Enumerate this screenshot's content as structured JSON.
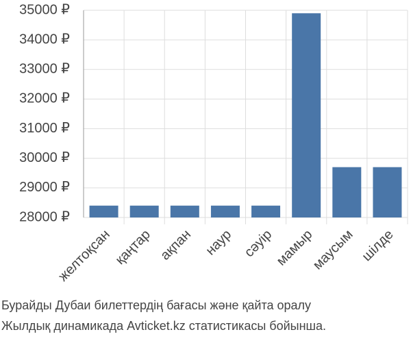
{
  "chart_data": {
    "type": "bar",
    "title": [
      "Бурайды Дубаи билеттердің бағасы және қайта оралу",
      "Жылдық динамикада Avticket.kz статистикасы бойынша."
    ],
    "categories": [
      "желтоқсан",
      "қаңтар",
      "ақпан",
      "наур",
      "сәуір",
      "мамыр",
      "маусым",
      "шілде"
    ],
    "values": [
      28400,
      28400,
      28400,
      28400,
      28400,
      34900,
      29700,
      29700
    ],
    "color": "#4a76a8",
    "ylim": [
      28000,
      35000
    ],
    "yticks": [
      {
        "value": 28000,
        "label": "28000 ₽"
      },
      {
        "value": 29000,
        "label": "29000 ₽"
      },
      {
        "value": 30000,
        "label": "30000 ₽"
      },
      {
        "value": 31000,
        "label": "31000 ₽"
      },
      {
        "value": 32000,
        "label": "32000 ₽"
      },
      {
        "value": 33000,
        "label": "33000 ₽"
      },
      {
        "value": 34000,
        "label": "34000 ₽"
      },
      {
        "value": 35000,
        "label": "35000 ₽"
      }
    ],
    "grid": true
  }
}
